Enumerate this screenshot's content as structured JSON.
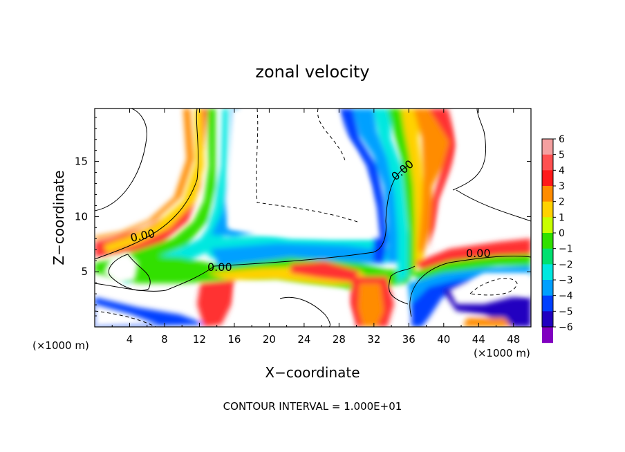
{
  "chart_data": {
    "type": "heatmap",
    "title": "zonal velocity",
    "xlabel": "X−coordinate",
    "ylabel": "Z−coordinate",
    "x_unit_left": "(×1000 m)",
    "x_unit_right": "(×1000 m)",
    "footer": "CONTOUR INTERVAL = 1.000E+01",
    "xlim": [
      0,
      50
    ],
    "ylim": [
      0,
      19.8
    ],
    "x_ticks": [
      4,
      8,
      12,
      16,
      20,
      24,
      28,
      32,
      36,
      40,
      44,
      48
    ],
    "y_ticks": [
      5,
      10,
      15
    ],
    "colorbar": {
      "levels": [
        6,
        5,
        4,
        3,
        2,
        1,
        0,
        -1,
        -2,
        -3,
        -4,
        -5,
        -6
      ],
      "colors": [
        "#f4a0a0",
        "#ff5050",
        "#ff1a1a",
        "#ff8c00",
        "#ffd200",
        "#c8ff00",
        "#30e000",
        "#00e070",
        "#00e8e0",
        "#00a0ff",
        "#0040ff",
        "#2000c0",
        "#8000c0"
      ]
    },
    "contour_labels": [
      "0.00",
      "0.00",
      "0.00",
      "0.00"
    ]
  }
}
